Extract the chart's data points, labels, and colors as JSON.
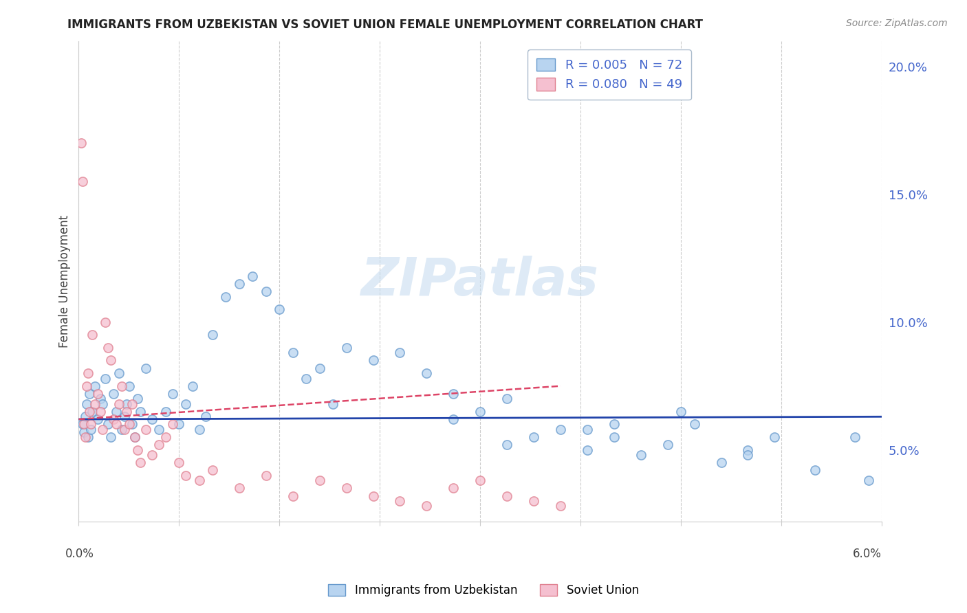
{
  "title": "IMMIGRANTS FROM UZBEKISTAN VS SOVIET UNION FEMALE UNEMPLOYMENT CORRELATION CHART",
  "source": "Source: ZipAtlas.com",
  "ylabel": "Female Unemployment",
  "legend_r1_label": "R = 0.005",
  "legend_r1_n": "N = 72",
  "legend_r2_label": "R = 0.080",
  "legend_r2_n": "N = 49",
  "uzbekistan_face_color": "#b8d4f0",
  "uzbekistan_edge_color": "#6699cc",
  "soviet_face_color": "#f5c0d0",
  "soviet_edge_color": "#e08090",
  "uzbekistan_line_color": "#2244aa",
  "soviet_line_color": "#dd4466",
  "right_ytick_color": "#4466cc",
  "xlim": [
    0.0,
    0.06
  ],
  "ylim": [
    0.022,
    0.21
  ],
  "watermark": "ZIPatlas",
  "background_color": "#ffffff",
  "grid_color": "#cccccc",
  "uz_x": [
    0.0003,
    0.0004,
    0.0005,
    0.0006,
    0.0007,
    0.0008,
    0.0009,
    0.001,
    0.0012,
    0.0014,
    0.0016,
    0.0018,
    0.002,
    0.0022,
    0.0024,
    0.0026,
    0.0028,
    0.003,
    0.0032,
    0.0034,
    0.0036,
    0.0038,
    0.004,
    0.0042,
    0.0044,
    0.0046,
    0.005,
    0.0055,
    0.006,
    0.0065,
    0.007,
    0.0075,
    0.008,
    0.0085,
    0.009,
    0.0095,
    0.01,
    0.011,
    0.012,
    0.013,
    0.014,
    0.015,
    0.016,
    0.017,
    0.018,
    0.019,
    0.02,
    0.022,
    0.024,
    0.026,
    0.028,
    0.03,
    0.032,
    0.034,
    0.036,
    0.038,
    0.04,
    0.042,
    0.044,
    0.046,
    0.048,
    0.05,
    0.052,
    0.04,
    0.045,
    0.05,
    0.055,
    0.058,
    0.059,
    0.038,
    0.032,
    0.028
  ],
  "uz_y": [
    0.06,
    0.057,
    0.063,
    0.068,
    0.055,
    0.072,
    0.058,
    0.065,
    0.075,
    0.062,
    0.07,
    0.068,
    0.078,
    0.06,
    0.055,
    0.072,
    0.065,
    0.08,
    0.058,
    0.063,
    0.068,
    0.075,
    0.06,
    0.055,
    0.07,
    0.065,
    0.082,
    0.062,
    0.058,
    0.065,
    0.072,
    0.06,
    0.068,
    0.075,
    0.058,
    0.063,
    0.095,
    0.11,
    0.115,
    0.118,
    0.112,
    0.105,
    0.088,
    0.078,
    0.082,
    0.068,
    0.09,
    0.085,
    0.088,
    0.08,
    0.072,
    0.065,
    0.07,
    0.055,
    0.058,
    0.05,
    0.055,
    0.048,
    0.052,
    0.06,
    0.045,
    0.05,
    0.055,
    0.06,
    0.065,
    0.048,
    0.042,
    0.055,
    0.038,
    0.058,
    0.052,
    0.062
  ],
  "su_x": [
    0.0002,
    0.0003,
    0.0004,
    0.0005,
    0.0006,
    0.0007,
    0.0008,
    0.0009,
    0.001,
    0.0012,
    0.0014,
    0.0016,
    0.0018,
    0.002,
    0.0022,
    0.0024,
    0.0026,
    0.0028,
    0.003,
    0.0032,
    0.0034,
    0.0036,
    0.0038,
    0.004,
    0.0042,
    0.0044,
    0.0046,
    0.005,
    0.0055,
    0.006,
    0.0065,
    0.007,
    0.0075,
    0.008,
    0.009,
    0.01,
    0.012,
    0.014,
    0.016,
    0.018,
    0.02,
    0.022,
    0.024,
    0.026,
    0.028,
    0.03,
    0.032,
    0.034,
    0.036
  ],
  "su_y": [
    0.17,
    0.155,
    0.06,
    0.055,
    0.075,
    0.08,
    0.065,
    0.06,
    0.095,
    0.068,
    0.072,
    0.065,
    0.058,
    0.1,
    0.09,
    0.085,
    0.062,
    0.06,
    0.068,
    0.075,
    0.058,
    0.065,
    0.06,
    0.068,
    0.055,
    0.05,
    0.045,
    0.058,
    0.048,
    0.052,
    0.055,
    0.06,
    0.045,
    0.04,
    0.038,
    0.042,
    0.035,
    0.04,
    0.032,
    0.038,
    0.035,
    0.032,
    0.03,
    0.028,
    0.035,
    0.038,
    0.032,
    0.03,
    0.028
  ],
  "uz_trend_x": [
    0.0,
    0.06
  ],
  "uz_trend_y": [
    0.062,
    0.063
  ],
  "su_trend_x": [
    0.0,
    0.036
  ],
  "su_trend_y": [
    0.062,
    0.075
  ]
}
